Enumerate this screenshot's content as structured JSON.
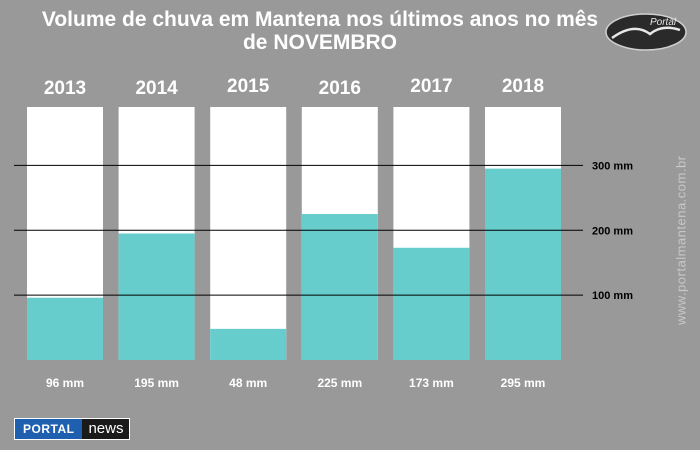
{
  "chart_data": {
    "type": "bar",
    "title": "Volume de chuva em Mantena nos últimos anos no mês de NOVEMBRO",
    "categories": [
      "2013",
      "2014",
      "2015",
      "2016",
      "2017",
      "2018"
    ],
    "values": [
      96,
      195,
      48,
      225,
      173,
      295
    ],
    "value_labels": [
      "96 mm",
      "195 mm",
      "48 mm",
      "225 mm",
      "173 mm",
      "295 mm"
    ],
    "ylim": [
      0,
      390
    ],
    "reference_lines": [
      {
        "value": 100,
        "label": "100 mm"
      },
      {
        "value": 200,
        "label": "200 mm"
      },
      {
        "value": 300,
        "label": "300 mm"
      }
    ],
    "colors": {
      "bar": "#66cccc",
      "column_background": "#ffffff",
      "page_background": "#999999",
      "line": "#000000"
    }
  },
  "logo": {
    "text": "Portal"
  },
  "watermark": "www.portalmantena.com.br",
  "brand": {
    "part1": "PORTAL",
    "part2": "news"
  }
}
